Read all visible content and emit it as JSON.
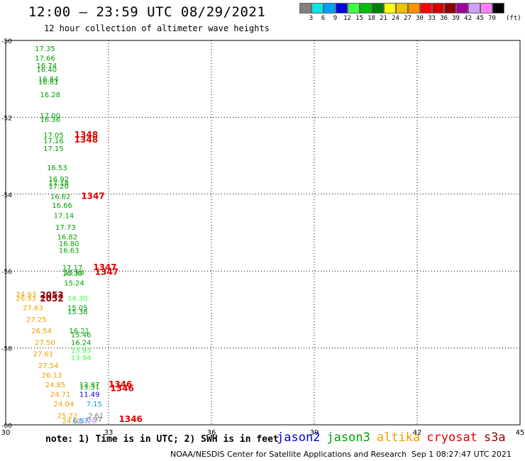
{
  "header": {
    "title": "12:00 – 23:59 UTC 08/29/2021",
    "subtitle": "12 hour collection of altimeter wave heights"
  },
  "legend": {
    "unit": "(ft)",
    "colors": [
      "#808080",
      "#00e8e8",
      "#00a0ff",
      "#0000e0",
      "#40ff40",
      "#00c000",
      "#008000",
      "#ffff00",
      "#f0c000",
      "#ff9000",
      "#ff0000",
      "#d00000",
      "#900000",
      "#a000a0",
      "#d0a0ff",
      "#ff80ff",
      "#000000"
    ],
    "ticks": [
      "3",
      "6",
      "9",
      "12",
      "15",
      "18",
      "21",
      "24",
      "27",
      "30",
      "33",
      "36",
      "39",
      "42",
      "45",
      "70"
    ]
  },
  "footer": {
    "note": "note: 1) Time is in UTC; 2) SWH is in feet",
    "credit": "NOAA/NESDIS Center for Satellite Applications and Research",
    "timestamp": "Sep  1 08:27:47 UTC 2021"
  },
  "satellites": [
    {
      "name": "jason2",
      "color": "#0000d0"
    },
    {
      "name": "jason3",
      "color": "#00a000"
    },
    {
      "name": "altika",
      "color": "#f0a000"
    },
    {
      "name": "cryosat",
      "color": "#e00000"
    },
    {
      "name": "s3a",
      "color": "#900000"
    }
  ],
  "chart_data": {
    "type": "scatter",
    "x_ticks": [
      "30",
      "33",
      "36",
      "39",
      "42",
      "45"
    ],
    "y_ticks": [
      "-50",
      "-52",
      "-54",
      "-56",
      "-58",
      "-60"
    ],
    "xlim": [
      30,
      45
    ],
    "ylim": [
      -60,
      -50
    ],
    "grid": true,
    "points": [
      {
        "x": 30.85,
        "y": -50.2,
        "label": "17.35",
        "color": "#00a000"
      },
      {
        "x": 30.85,
        "y": -50.45,
        "label": "17.66",
        "color": "#00a000"
      },
      {
        "x": 30.9,
        "y": -50.65,
        "label": "16.74",
        "color": "#00a000"
      },
      {
        "x": 30.9,
        "y": -50.75,
        "label": "16.40",
        "color": "#00a000"
      },
      {
        "x": 30.95,
        "y": -51.0,
        "label": "16.84",
        "color": "#00a000"
      },
      {
        "x": 30.95,
        "y": -51.07,
        "label": "16.81",
        "color": "#00a000"
      },
      {
        "x": 31.0,
        "y": -51.4,
        "label": "16.28",
        "color": "#00a000"
      },
      {
        "x": 31.0,
        "y": -51.95,
        "label": "17.00",
        "color": "#00a000"
      },
      {
        "x": 31.0,
        "y": -52.05,
        "label": "16.36",
        "color": "#00a000"
      },
      {
        "x": 31.1,
        "y": -52.45,
        "label": "17.05",
        "color": "#00a000"
      },
      {
        "x": 31.1,
        "y": -52.6,
        "label": "17.16",
        "color": "#00a000"
      },
      {
        "x": 31.1,
        "y": -52.8,
        "label": "17.15",
        "color": "#00a000"
      },
      {
        "x": 32.0,
        "y": -52.45,
        "label": "1348",
        "color": "#e00000"
      },
      {
        "x": 32.0,
        "y": -52.58,
        "label": "1348",
        "color": "#e00000"
      },
      {
        "x": 31.2,
        "y": -53.3,
        "label": "16.53",
        "color": "#00a000"
      },
      {
        "x": 31.25,
        "y": -53.6,
        "label": "16.92",
        "color": "#00a000"
      },
      {
        "x": 31.25,
        "y": -53.7,
        "label": "17.18",
        "color": "#00a000"
      },
      {
        "x": 31.25,
        "y": -53.78,
        "label": "17.20",
        "color": "#00a000"
      },
      {
        "x": 31.3,
        "y": -54.05,
        "label": "16.62",
        "color": "#00a000"
      },
      {
        "x": 32.2,
        "y": -54.05,
        "label": "1347",
        "color": "#e00000"
      },
      {
        "x": 31.35,
        "y": -54.28,
        "label": "16.66",
        "color": "#00a000"
      },
      {
        "x": 31.4,
        "y": -54.55,
        "label": "17.14",
        "color": "#00a000"
      },
      {
        "x": 31.45,
        "y": -54.85,
        "label": "17.73",
        "color": "#00a000"
      },
      {
        "x": 31.5,
        "y": -55.1,
        "label": "16.82",
        "color": "#00a000"
      },
      {
        "x": 31.55,
        "y": -55.28,
        "label": "16.80",
        "color": "#00a000"
      },
      {
        "x": 31.55,
        "y": -55.45,
        "label": "16.63",
        "color": "#00a000"
      },
      {
        "x": 31.65,
        "y": -55.9,
        "label": "17.17",
        "color": "#00a000"
      },
      {
        "x": 31.7,
        "y": -56.02,
        "label": "15.90",
        "color": "#00a000"
      },
      {
        "x": 31.65,
        "y": -56.05,
        "label": "16.30",
        "color": "#00a000"
      },
      {
        "x": 32.55,
        "y": -55.9,
        "label": "1347",
        "color": "#e00000"
      },
      {
        "x": 32.6,
        "y": -56.02,
        "label": "1347",
        "color": "#e00000"
      },
      {
        "x": 31.7,
        "y": -56.3,
        "label": "15.24",
        "color": "#00a000"
      },
      {
        "x": 30.3,
        "y": -56.6,
        "label": "24.93",
        "color": "#f0a000"
      },
      {
        "x": 30.3,
        "y": -56.7,
        "label": "26.93",
        "color": "#f0a000"
      },
      {
        "x": 31.0,
        "y": -56.62,
        "label": "2053",
        "color": "#900000"
      },
      {
        "x": 31.0,
        "y": -56.72,
        "label": "2052",
        "color": "#900000"
      },
      {
        "x": 31.8,
        "y": -56.7,
        "label": "14.30",
        "color": "#40ff40"
      },
      {
        "x": 30.5,
        "y": -56.95,
        "label": "27.63",
        "color": "#f0a000"
      },
      {
        "x": 31.8,
        "y": -56.95,
        "label": "15.05",
        "color": "#00a000"
      },
      {
        "x": 31.8,
        "y": -57.05,
        "label": "15.38",
        "color": "#00a000"
      },
      {
        "x": 30.6,
        "y": -57.25,
        "label": "27.25",
        "color": "#f0a000"
      },
      {
        "x": 30.75,
        "y": -57.55,
        "label": "26.54",
        "color": "#f0a000"
      },
      {
        "x": 31.85,
        "y": -57.55,
        "label": "16.21",
        "color": "#00a000"
      },
      {
        "x": 31.9,
        "y": -57.65,
        "label": "15.46",
        "color": "#00a000"
      },
      {
        "x": 30.85,
        "y": -57.85,
        "label": "27.50",
        "color": "#f0a000"
      },
      {
        "x": 31.9,
        "y": -57.85,
        "label": "16.24",
        "color": "#00a000"
      },
      {
        "x": 30.8,
        "y": -58.15,
        "label": "27.61",
        "color": "#f0a000"
      },
      {
        "x": 31.9,
        "y": -58.05,
        "label": "13.93",
        "color": "#40ff40"
      },
      {
        "x": 31.9,
        "y": -58.25,
        "label": "13.94",
        "color": "#40ff40"
      },
      {
        "x": 30.95,
        "y": -58.45,
        "label": "27.54",
        "color": "#f0a000"
      },
      {
        "x": 31.05,
        "y": -58.7,
        "label": "26.13",
        "color": "#f0a000"
      },
      {
        "x": 31.15,
        "y": -58.95,
        "label": "24.85",
        "color": "#f0a000"
      },
      {
        "x": 32.15,
        "y": -58.95,
        "label": "12.87",
        "color": "#00a000"
      },
      {
        "x": 32.15,
        "y": -59.0,
        "label": "13.31",
        "color": "#00a000"
      },
      {
        "x": 33.0,
        "y": -58.95,
        "label": "1346",
        "color": "#e00000"
      },
      {
        "x": 33.05,
        "y": -59.05,
        "label": "1346",
        "color": "#e00000"
      },
      {
        "x": 31.3,
        "y": -59.2,
        "label": "24.71",
        "color": "#f0a000"
      },
      {
        "x": 32.15,
        "y": -59.2,
        "label": "11.49",
        "color": "#0000d0"
      },
      {
        "x": 31.4,
        "y": -59.45,
        "label": "24.04",
        "color": "#f0a000"
      },
      {
        "x": 32.35,
        "y": -59.45,
        "label": "7.15",
        "color": "#00a0ff"
      },
      {
        "x": 31.5,
        "y": -59.75,
        "label": "25.22",
        "color": "#f0a000"
      },
      {
        "x": 32.4,
        "y": -59.75,
        "label": "2.61",
        "color": "#808080"
      },
      {
        "x": 32.35,
        "y": -59.85,
        "label": "0.97",
        "color": "#808080"
      },
      {
        "x": 33.3,
        "y": -59.85,
        "label": "1346",
        "color": "#e00000"
      },
      {
        "x": 31.65,
        "y": -60.05,
        "label": "24.05",
        "color": "#f0a000"
      },
      {
        "x": 31.95,
        "y": -60.35,
        "label": "6.57",
        "color": "#00a0ff"
      },
      {
        "x": 32.05,
        "y": -60.65,
        "label": "44.20",
        "color": "#d0a0ff"
      }
    ]
  }
}
